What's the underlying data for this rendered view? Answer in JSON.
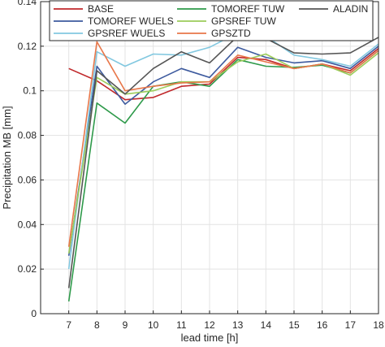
{
  "chart_data": {
    "type": "line",
    "title": "",
    "xlabel": "lead time [h]",
    "ylabel": "Precipitation MB [mm]",
    "xlim": [
      6,
      18
    ],
    "ylim": [
      0,
      0.14
    ],
    "x_ticks": [
      7,
      8,
      9,
      10,
      11,
      12,
      13,
      14,
      15,
      16,
      17,
      18
    ],
    "y_ticks": [
      0,
      0.02,
      0.04,
      0.06,
      0.08,
      0.1,
      0.12,
      0.14
    ],
    "y_tick_labels": [
      "0",
      "0.02",
      "0.04",
      "0.06",
      "0.08",
      "0.1",
      "0.12",
      "0.14"
    ],
    "grid": true,
    "legend_position": "top",
    "x": [
      7,
      8,
      9,
      10,
      11,
      12,
      13,
      14,
      15,
      16,
      17,
      18
    ],
    "series": [
      {
        "name": "BASE",
        "color": "#c0282b",
        "values": [
          0.11,
          0.1045,
          0.096,
          0.097,
          0.102,
          0.103,
          0.115,
          0.114,
          0.11,
          0.112,
          0.109,
          0.119
        ]
      },
      {
        "name": "TOMOREF WUELS",
        "color": "#3d5a9e",
        "values": [
          0.026,
          0.111,
          0.094,
          0.104,
          0.11,
          0.106,
          0.1195,
          0.115,
          0.1125,
          0.1135,
          0.11,
          0.12
        ]
      },
      {
        "name": "GPSREF WUELS",
        "color": "#82c8e0",
        "values": [
          0.02,
          0.1175,
          0.111,
          0.1165,
          0.116,
          0.1195,
          0.126,
          0.1245,
          0.116,
          0.114,
          0.111,
          0.121
        ]
      },
      {
        "name": "TOMOREF TUW",
        "color": "#2e9a4a",
        "values": [
          0.0055,
          0.0945,
          0.0855,
          0.102,
          0.104,
          0.102,
          0.114,
          0.111,
          0.1105,
          0.1115,
          0.108,
          0.118
        ]
      },
      {
        "name": "GPSREF TUW",
        "color": "#9ccc5a",
        "values": [
          0.027,
          0.106,
          0.0985,
          0.1,
          0.104,
          0.104,
          0.113,
          0.1165,
          0.11,
          0.112,
          0.107,
          0.117
        ]
      },
      {
        "name": "GPSZTD",
        "color": "#e8774a",
        "values": [
          0.03,
          0.122,
          0.1,
          0.102,
          0.1035,
          0.104,
          0.116,
          0.113,
          0.11,
          0.112,
          0.108,
          0.118
        ]
      },
      {
        "name": "ALADIN",
        "color": "#555555",
        "values": [
          0.0115,
          0.109,
          0.0985,
          0.11,
          0.1175,
          0.1125,
          0.1245,
          0.1235,
          0.117,
          0.1165,
          0.117,
          0.124
        ]
      }
    ]
  }
}
